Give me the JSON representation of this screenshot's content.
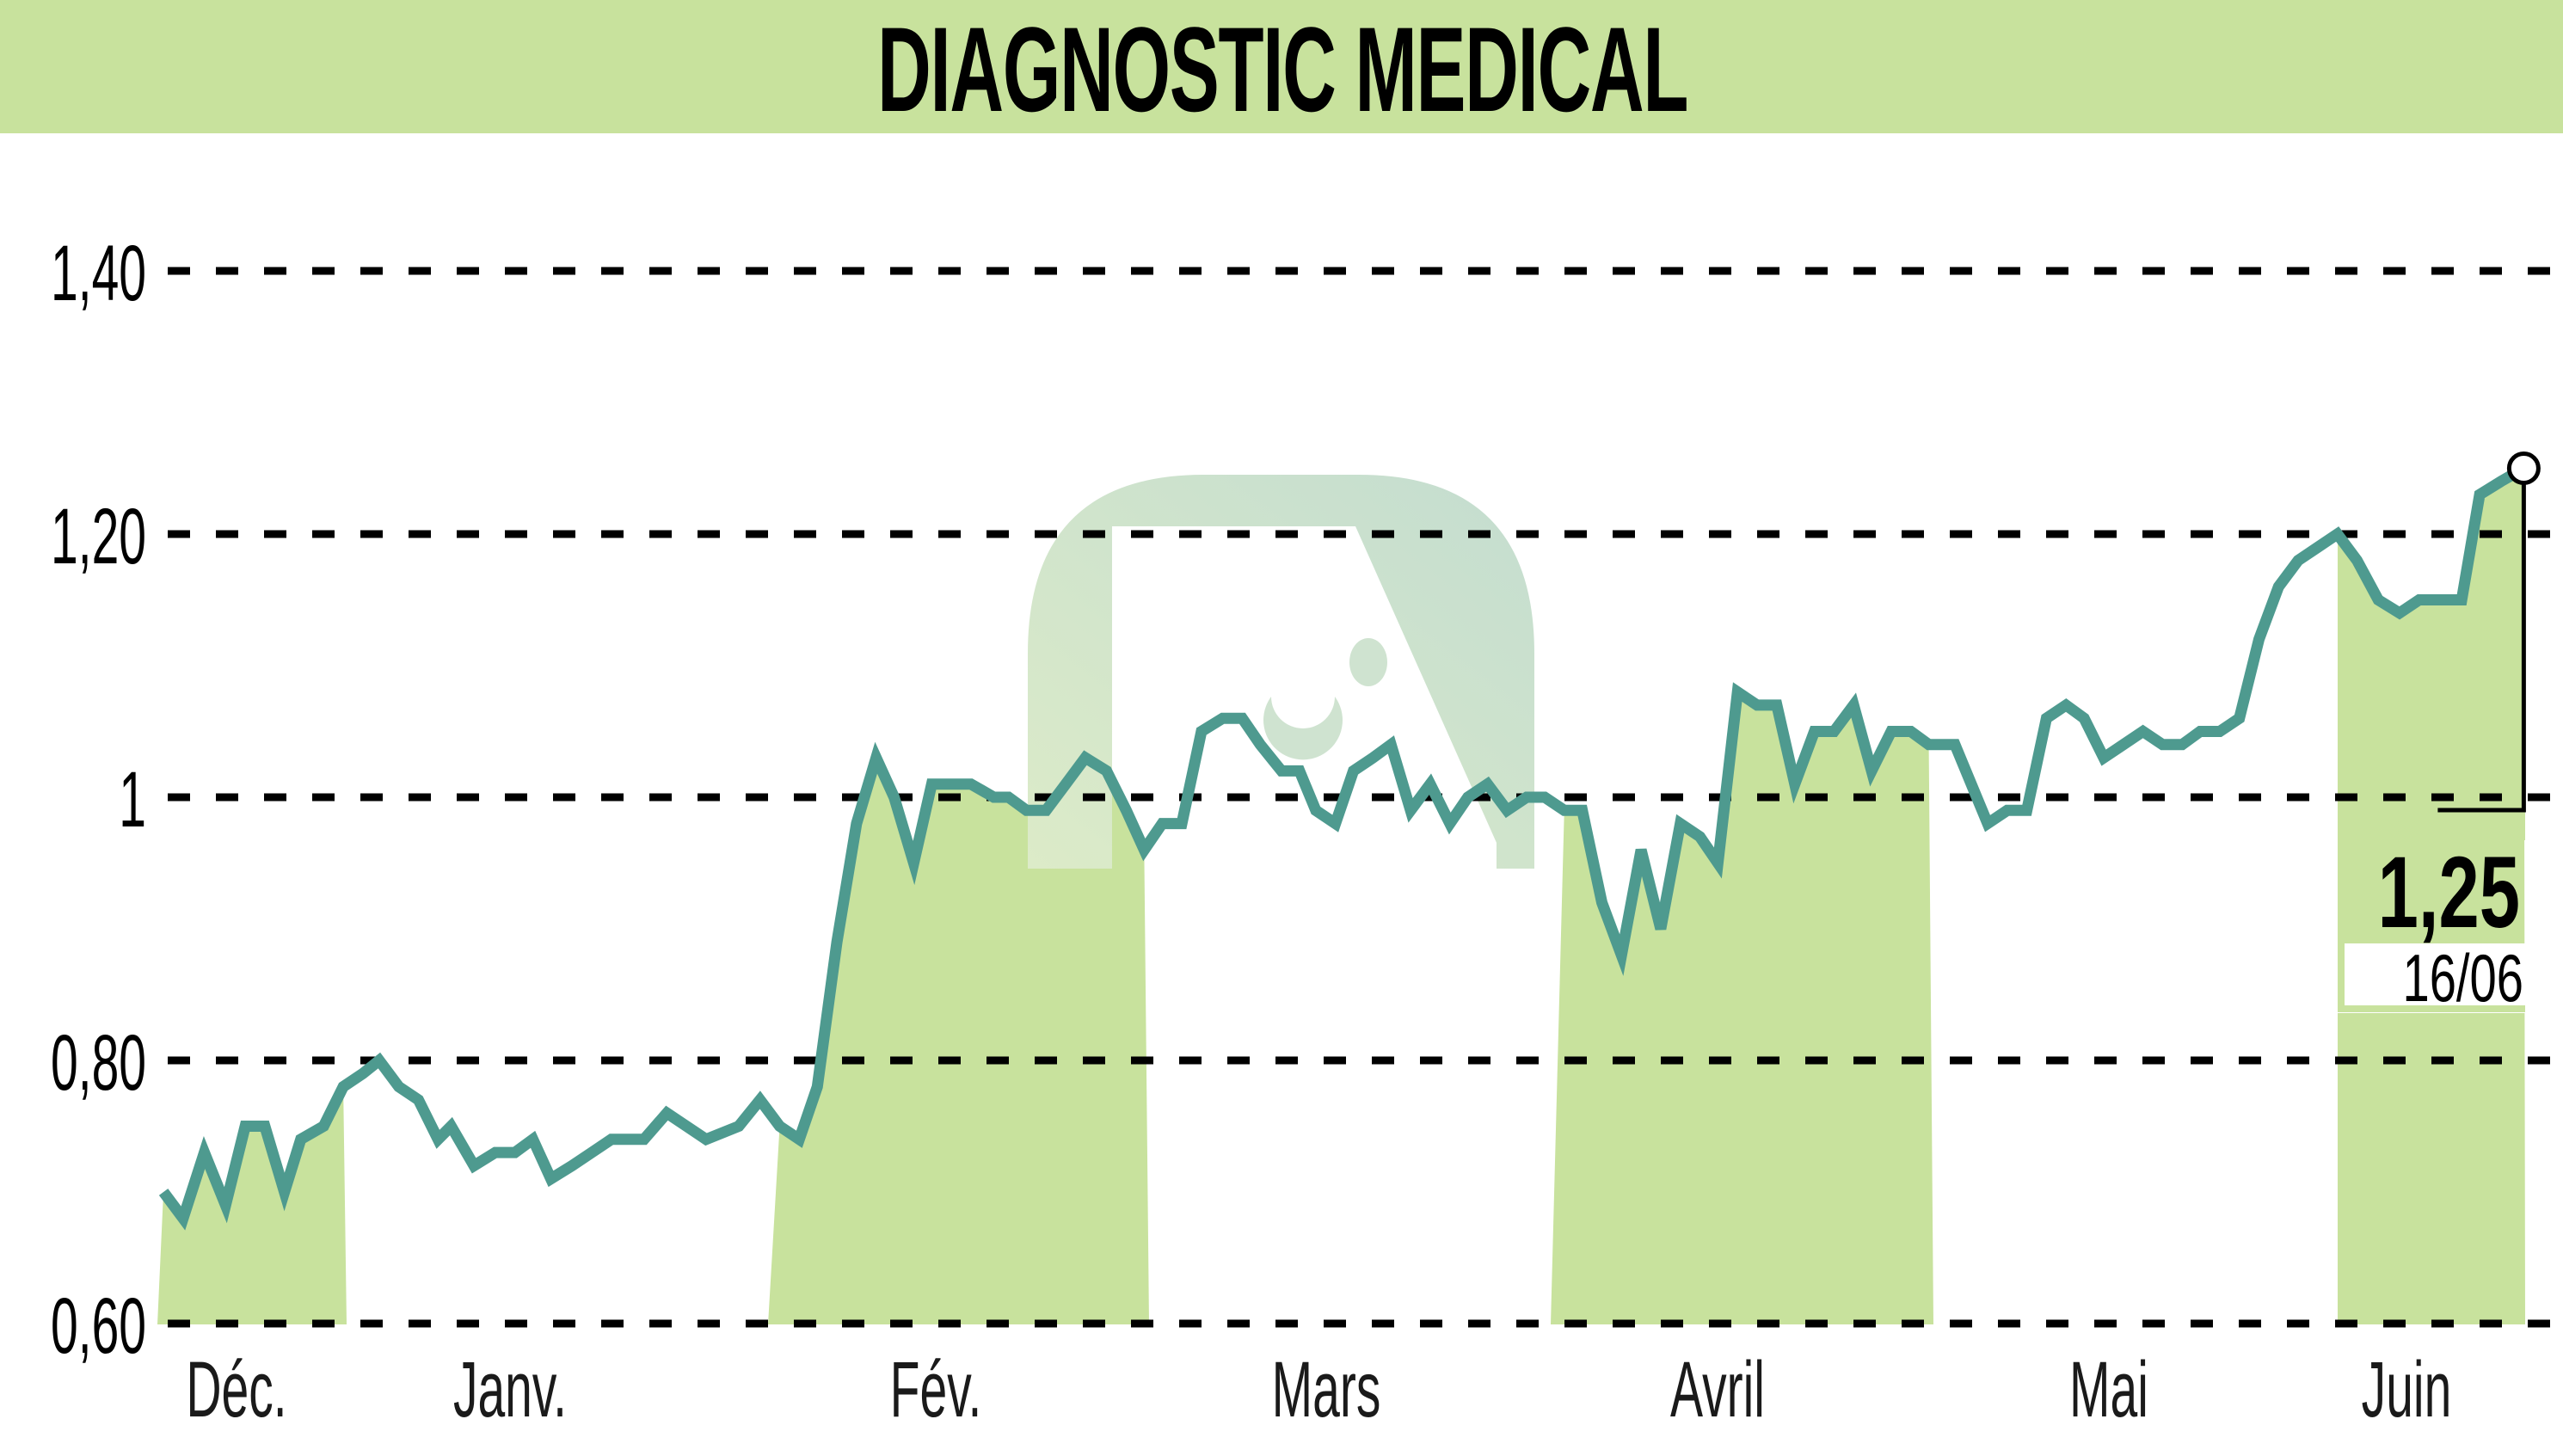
{
  "header": {
    "title": "DIAGNOSTIC MEDICAL"
  },
  "colors": {
    "title_bar": "#c8e29d",
    "band": "#c8e29d",
    "line": "#4e9a8f",
    "grid": "#000000",
    "watermark": "#cfe3d0"
  },
  "chart_data": {
    "type": "line",
    "title": "DIAGNOSTIC MEDICAL",
    "xlabel": "",
    "ylabel": "",
    "ylim": [
      0.6,
      1.4
    ],
    "yticks": [
      "0,60",
      "0,80",
      "1",
      "1,20",
      "1,40"
    ],
    "ytick_values": [
      0.6,
      0.8,
      1.0,
      1.2,
      1.4
    ],
    "categories": [
      "Déc.",
      "Janv.",
      "Févr.",
      "Mars",
      "Avril",
      "Mai",
      "Juin"
    ],
    "month_labels": [
      "Déc.",
      "Janv.",
      "Fév.",
      "Mars",
      "Avril",
      "Mai",
      "Juin"
    ],
    "grid": {
      "horizontal": true,
      "style": "dashed"
    },
    "shaded_months": [
      "Déc.",
      "Fév.",
      "Avril",
      "Juin"
    ],
    "last_value": {
      "value": "1,25",
      "date": "16/06"
    },
    "series": [
      {
        "name": "DIAGNOSTIC MEDICAL",
        "points": [
          [
            100,
            0.7
          ],
          [
            112,
            0.68
          ],
          [
            125,
            0.73
          ],
          [
            138,
            0.69
          ],
          [
            150,
            0.75
          ],
          [
            162,
            0.75
          ],
          [
            174,
            0.7
          ],
          [
            184,
            0.74
          ],
          [
            198,
            0.75
          ],
          [
            210,
            0.78
          ],
          [
            222,
            0.79
          ],
          [
            232,
            0.8
          ],
          [
            244,
            0.78
          ],
          [
            256,
            0.77
          ],
          [
            268,
            0.74
          ],
          [
            276,
            0.75
          ],
          [
            290,
            0.72
          ],
          [
            303,
            0.73
          ],
          [
            315,
            0.73
          ],
          [
            326,
            0.74
          ],
          [
            337,
            0.71
          ],
          [
            350,
            0.72
          ],
          [
            362,
            0.73
          ],
          [
            374,
            0.74
          ],
          [
            394,
            0.74
          ],
          [
            408,
            0.76
          ],
          [
            420,
            0.75
          ],
          [
            432,
            0.74
          ],
          [
            452,
            0.75
          ],
          [
            465,
            0.77
          ],
          [
            477,
            0.75
          ],
          [
            489,
            0.74
          ],
          [
            500,
            0.78
          ],
          [
            512,
            0.89
          ],
          [
            524,
            0.98
          ],
          [
            536,
            1.03
          ],
          [
            547,
            1.0
          ],
          [
            559,
            0.95
          ],
          [
            570,
            1.01
          ],
          [
            594,
            1.01
          ],
          [
            608,
            1.0
          ],
          [
            617,
            1.0
          ],
          [
            628,
            0.99
          ],
          [
            640,
            0.99
          ],
          [
            652,
            1.01
          ],
          [
            664,
            1.03
          ],
          [
            677,
            1.02
          ],
          [
            689,
            0.99
          ],
          [
            700,
            0.96
          ],
          [
            711,
            0.98
          ],
          [
            723,
            0.98
          ],
          [
            735,
            1.05
          ],
          [
            748,
            1.06
          ],
          [
            760,
            1.06
          ],
          [
            771,
            1.04
          ],
          [
            784,
            1.02
          ],
          [
            795,
            1.02
          ],
          [
            805,
            0.99
          ],
          [
            817,
            0.98
          ],
          [
            828,
            1.02
          ],
          [
            840,
            1.03
          ],
          [
            851,
            1.04
          ],
          [
            863,
            0.99
          ],
          [
            875,
            1.01
          ],
          [
            887,
            0.98
          ],
          [
            898,
            1.0
          ],
          [
            910,
            1.01
          ],
          [
            922,
            0.99
          ],
          [
            934,
            1.0
          ],
          [
            945,
            1.0
          ],
          [
            957,
            0.99
          ],
          [
            968,
            0.99
          ],
          [
            980,
            0.92
          ],
          [
            992,
            0.88
          ],
          [
            1004,
            0.96
          ],
          [
            1016,
            0.9
          ],
          [
            1028,
            0.98
          ],
          [
            1040,
            0.97
          ],
          [
            1051,
            0.95
          ],
          [
            1063,
            1.08
          ],
          [
            1075,
            1.07
          ],
          [
            1087,
            1.07
          ],
          [
            1098,
            1.01
          ],
          [
            1110,
            1.05
          ],
          [
            1122,
            1.05
          ],
          [
            1134,
            1.07
          ],
          [
            1145,
            1.02
          ],
          [
            1157,
            1.05
          ],
          [
            1169,
            1.05
          ],
          [
            1180,
            1.04
          ],
          [
            1196,
            1.04
          ],
          [
            1216,
            0.98
          ],
          [
            1228,
            0.99
          ],
          [
            1240,
            0.99
          ],
          [
            1252,
            1.06
          ],
          [
            1264,
            1.07
          ],
          [
            1275,
            1.06
          ],
          [
            1287,
            1.03
          ],
          [
            1299,
            1.04
          ],
          [
            1311,
            1.05
          ],
          [
            1323,
            1.04
          ],
          [
            1335,
            1.04
          ],
          [
            1346,
            1.05
          ],
          [
            1358,
            1.05
          ],
          [
            1370,
            1.06
          ],
          [
            1382,
            1.12
          ],
          [
            1394,
            1.16
          ],
          [
            1406,
            1.18
          ],
          [
            1418,
            1.19
          ],
          [
            1430,
            1.2
          ],
          [
            1442,
            1.18
          ],
          [
            1455,
            1.15
          ],
          [
            1468,
            1.14
          ],
          [
            1480,
            1.15
          ],
          [
            1494,
            1.15
          ],
          [
            1506,
            1.15
          ],
          [
            1517,
            1.23
          ],
          [
            1530,
            1.24
          ],
          [
            1544,
            1.25
          ]
        ]
      }
    ]
  },
  "annotation": {
    "value": "1,25",
    "date": "16/06"
  }
}
